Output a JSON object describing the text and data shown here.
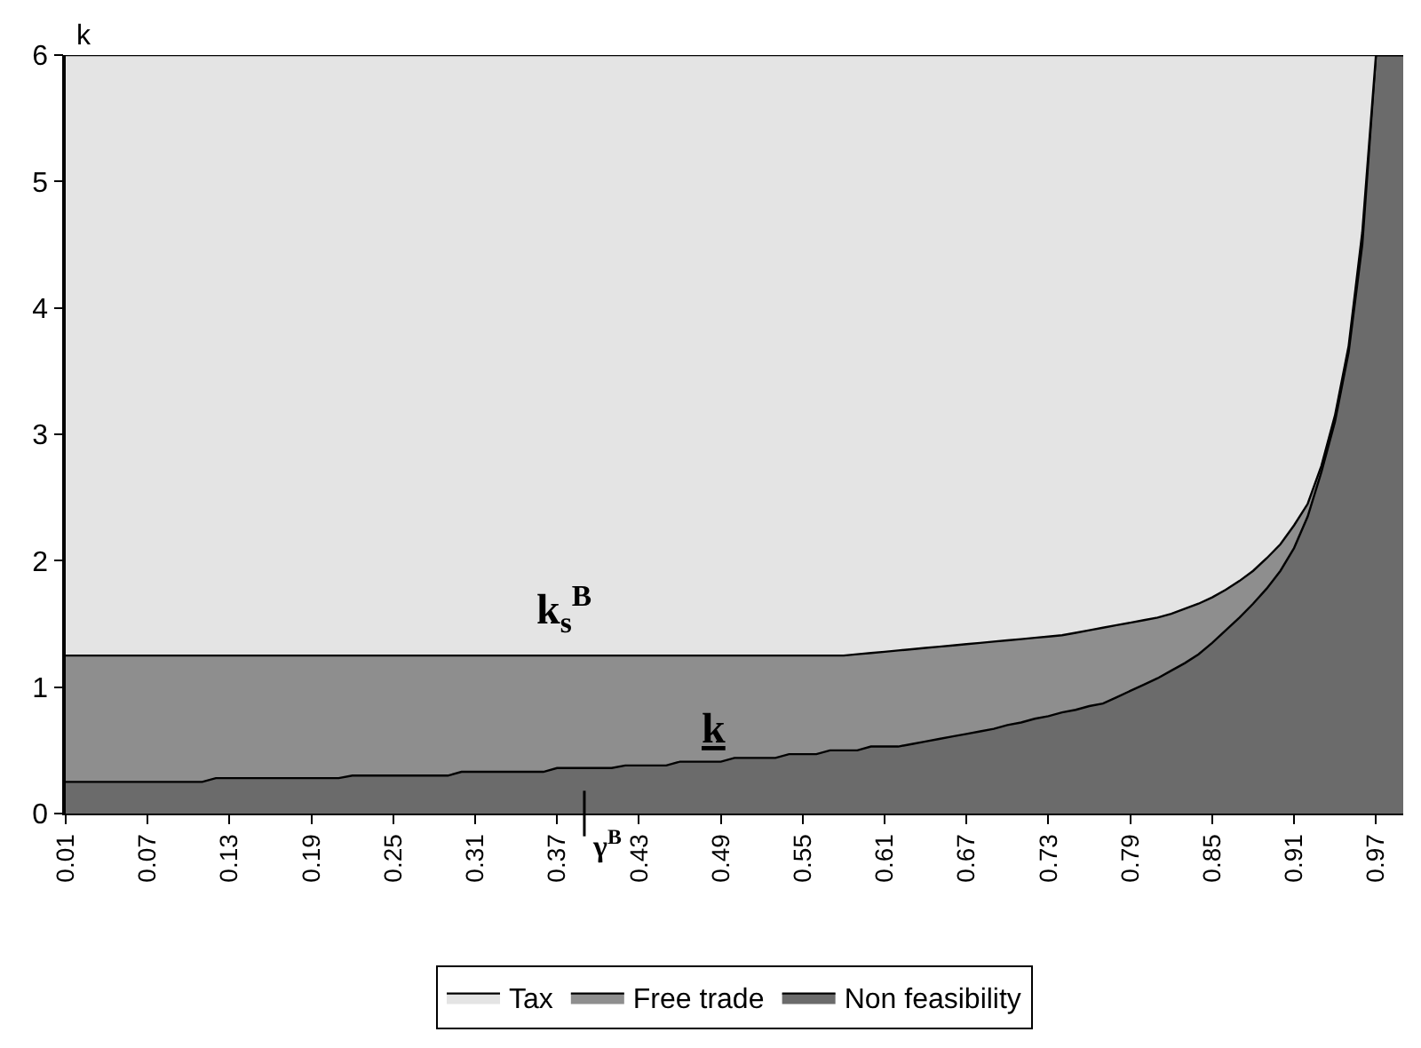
{
  "chart_data": {
    "type": "area",
    "stacked": true,
    "ylabel": "k",
    "ylim": [
      0,
      6
    ],
    "yticks": [
      0,
      1,
      2,
      3,
      4,
      5,
      6
    ],
    "legend": "bottom",
    "line_style": "solid",
    "marker": "none",
    "categories": [
      "0.01",
      null,
      null,
      null,
      null,
      null,
      "0.07",
      null,
      null,
      null,
      null,
      null,
      "0.13",
      null,
      null,
      null,
      null,
      null,
      "0.19",
      null,
      null,
      null,
      null,
      null,
      "0.25",
      null,
      null,
      null,
      null,
      null,
      "0.31",
      null,
      null,
      null,
      null,
      null,
      "0.37",
      null,
      null,
      null,
      null,
      null,
      "0.43",
      null,
      null,
      null,
      null,
      null,
      "0.49",
      null,
      null,
      null,
      null,
      null,
      "0.55",
      null,
      null,
      null,
      null,
      null,
      "0.61",
      null,
      null,
      null,
      null,
      null,
      "0.67",
      null,
      null,
      null,
      null,
      null,
      "0.73",
      null,
      null,
      null,
      null,
      null,
      "0.79",
      null,
      null,
      null,
      null,
      null,
      "0.85",
      null,
      null,
      null,
      null,
      null,
      "0.91",
      null,
      null,
      null,
      null,
      null,
      "0.97",
      null,
      null
    ],
    "series": [
      {
        "name": "Non feasibility",
        "color": "#6b6b6b",
        "values": [
          0.25,
          0.25,
          0.25,
          0.25,
          0.25,
          0.25,
          0.25,
          0.25,
          0.25,
          0.25,
          0.25,
          0.28,
          0.28,
          0.28,
          0.28,
          0.28,
          0.28,
          0.28,
          0.28,
          0.28,
          0.28,
          0.3,
          0.3,
          0.3,
          0.3,
          0.3,
          0.3,
          0.3,
          0.3,
          0.33,
          0.33,
          0.33,
          0.33,
          0.33,
          0.33,
          0.33,
          0.36,
          0.36,
          0.36,
          0.36,
          0.36,
          0.38,
          0.38,
          0.38,
          0.38,
          0.41,
          0.41,
          0.41,
          0.41,
          0.44,
          0.44,
          0.44,
          0.44,
          0.47,
          0.47,
          0.47,
          0.5,
          0.5,
          0.5,
          0.53,
          0.53,
          0.53,
          0.55,
          0.57,
          0.59,
          0.61,
          0.63,
          0.65,
          0.67,
          0.7,
          0.72,
          0.75,
          0.77,
          0.8,
          0.82,
          0.85,
          0.87,
          0.92,
          0.97,
          1.02,
          1.07,
          1.13,
          1.19,
          1.26,
          1.35,
          1.45,
          1.55,
          1.66,
          1.78,
          1.92,
          2.1,
          2.35,
          2.7,
          3.1,
          3.65,
          4.5,
          6,
          6,
          6
        ]
      },
      {
        "name": "Free trade",
        "color": "#8e8e8e",
        "values": [
          1.0,
          1.0,
          1.0,
          1.0,
          1.0,
          1.0,
          1.0,
          1.0,
          1.0,
          1.0,
          1.0,
          0.97,
          0.97,
          0.97,
          0.97,
          0.97,
          0.97,
          0.97,
          0.97,
          0.97,
          0.97,
          0.95,
          0.95,
          0.95,
          0.95,
          0.95,
          0.95,
          0.95,
          0.95,
          0.92,
          0.92,
          0.92,
          0.92,
          0.92,
          0.92,
          0.92,
          0.89,
          0.89,
          0.89,
          0.89,
          0.89,
          0.87,
          0.87,
          0.87,
          0.87,
          0.84,
          0.84,
          0.84,
          0.84,
          0.81,
          0.81,
          0.81,
          0.81,
          0.78,
          0.78,
          0.78,
          0.75,
          0.75,
          0.76,
          0.74,
          0.75,
          0.76,
          0.75,
          0.74,
          0.73,
          0.72,
          0.71,
          0.7,
          0.69,
          0.67,
          0.66,
          0.64,
          0.63,
          0.61,
          0.61,
          0.6,
          0.6,
          0.57,
          0.54,
          0.51,
          0.48,
          0.45,
          0.43,
          0.4,
          0.36,
          0.32,
          0.29,
          0.26,
          0.24,
          0.21,
          0.18,
          0.1,
          0.05,
          0.05,
          0.05,
          0.1,
          0,
          0,
          0
        ]
      },
      {
        "name": "Tax",
        "color": "#e4e4e4",
        "values": [
          4.75,
          4.75,
          4.75,
          4.75,
          4.75,
          4.75,
          4.75,
          4.75,
          4.75,
          4.75,
          4.75,
          4.75,
          4.75,
          4.75,
          4.75,
          4.75,
          4.75,
          4.75,
          4.75,
          4.75,
          4.75,
          4.75,
          4.75,
          4.75,
          4.75,
          4.75,
          4.75,
          4.75,
          4.75,
          4.75,
          4.75,
          4.75,
          4.75,
          4.75,
          4.75,
          4.75,
          4.75,
          4.75,
          4.75,
          4.75,
          4.75,
          4.75,
          4.75,
          4.75,
          4.75,
          4.75,
          4.75,
          4.75,
          4.75,
          4.75,
          4.75,
          4.75,
          4.75,
          4.75,
          4.75,
          4.75,
          4.75,
          4.75,
          4.74,
          4.73,
          4.72,
          4.71,
          4.7,
          4.69,
          4.68,
          4.67,
          4.66,
          4.65,
          4.64,
          4.63,
          4.62,
          4.61,
          4.6,
          4.59,
          4.57,
          4.55,
          4.53,
          4.51,
          4.49,
          4.47,
          4.45,
          4.42,
          4.38,
          4.34,
          4.29,
          4.23,
          4.16,
          4.08,
          3.98,
          3.87,
          3.72,
          3.55,
          3.25,
          2.85,
          2.3,
          1.4,
          0,
          0,
          0
        ]
      }
    ],
    "annotations": [
      "k$_{s}$$^{B}$",
      "k",
      "γ$^{B}$"
    ]
  }
}
